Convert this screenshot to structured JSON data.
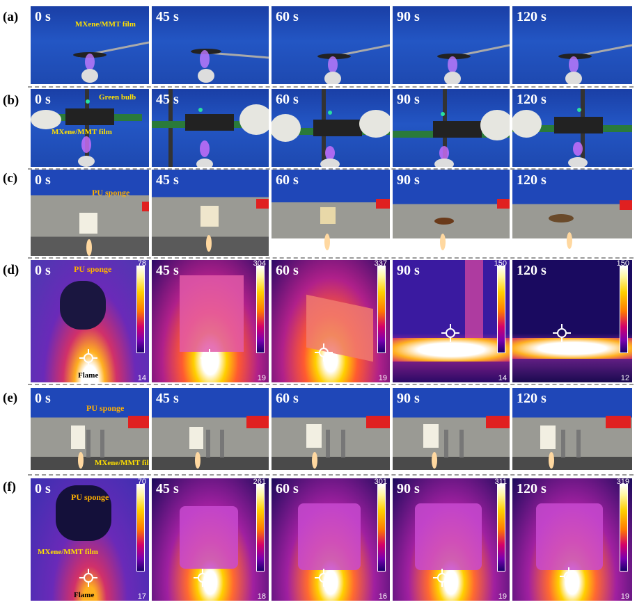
{
  "rows": [
    {
      "label": "(a)",
      "times": [
        "0 s",
        "45 s",
        "60 s",
        "90 s",
        "120 s"
      ],
      "annotations": [
        "MXene/MMT film"
      ]
    },
    {
      "label": "(b)",
      "times": [
        "0 s",
        "45 s",
        "60 s",
        "90 s",
        "120 s"
      ],
      "annotations": [
        "Green bulb",
        "MXene/MMT film"
      ]
    },
    {
      "label": "(c)",
      "times": [
        "0 s",
        "45 s",
        "60 s",
        "90 s",
        "120 s"
      ],
      "annotations": [
        "PU sponge"
      ]
    },
    {
      "label": "(d)",
      "times": [
        "0 s",
        "45 s",
        "60 s",
        "90 s",
        "120 s"
      ],
      "annotations": [
        "PU sponge",
        "Flame"
      ],
      "scales": [
        {
          "max": "78",
          "min": "14"
        },
        {
          "max": "304",
          "min": "19"
        },
        {
          "max": "337",
          "min": "19"
        },
        {
          "max": "150",
          "min": "14"
        },
        {
          "max": "150",
          "min": "12"
        }
      ]
    },
    {
      "label": "(e)",
      "times": [
        "0 s",
        "45 s",
        "60 s",
        "90 s",
        "120 s"
      ],
      "annotations": [
        "PU sponge",
        "MXene/MMT film"
      ]
    },
    {
      "label": "(f)",
      "times": [
        "0 s",
        "45 s",
        "60 s",
        "90 s",
        "120 s"
      ],
      "annotations": [
        "PU sponge",
        "MXene/MMT film",
        "Flame"
      ],
      "scales": [
        {
          "max": "70",
          "min": "17"
        },
        {
          "max": "261",
          "min": "18"
        },
        {
          "max": "301",
          "min": "16"
        },
        {
          "max": "311",
          "min": "19"
        },
        {
          "max": "319",
          "min": "19"
        }
      ]
    }
  ],
  "colors": {
    "annotation_yellow": "#ffe000",
    "annotation_orange": "#ffb000",
    "backdrop_blue": "#1e49b0"
  }
}
